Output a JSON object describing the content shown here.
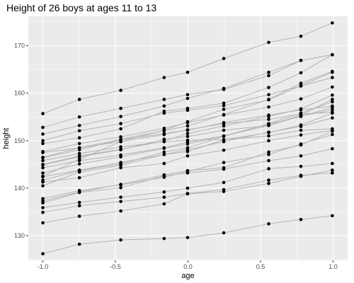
{
  "chart_data": {
    "type": "line",
    "title": "Height of 26 boys at ages 11 to 13",
    "xlabel": "age",
    "ylabel": "height",
    "xlim": [
      -1.1,
      1.1
    ],
    "ylim": [
      124.8,
      176.2
    ],
    "x_ticks": [
      -1.0,
      -0.5,
      0.0,
      0.5,
      1.0
    ],
    "x_tick_labels": [
      "-1.0",
      "-0.5",
      "0.0",
      "0.5",
      "1.0"
    ],
    "y_ticks": [
      130,
      140,
      150,
      160,
      170
    ],
    "y_tick_labels": [
      "130",
      "140",
      "150",
      "160",
      "170"
    ],
    "grid": true,
    "legend": "none",
    "colors": {
      "panel": "#ebebeb",
      "grid_major": "#ffffff",
      "point": "#000000",
      "line": "#b3b3b3",
      "tick_text": "#4d4d4d"
    },
    "series": [
      {
        "x": [
          -1.0,
          -0.7479,
          -0.463,
          -0.1643,
          -0.0027,
          0.2466,
          0.5562,
          0.7781,
          0.9945
        ],
        "y": [
          140.5,
          143.4,
          144.8,
          147.1,
          147.7,
          150.2,
          151.7,
          153.3,
          155.8
        ]
      },
      {
        "x": [
          -1.0,
          -0.7479,
          -0.463,
          -0.1643,
          -0.0027,
          0.2466,
          0.5562,
          0.7781,
          0.9945
        ],
        "y": [
          136.9,
          139.1,
          140.1,
          142.6,
          143.2,
          144.0,
          145.8,
          146.8,
          148.3
        ]
      },
      {
        "x": [
          -1.0,
          -0.7479,
          -0.463,
          -0.1643,
          -0.0027,
          0.2466,
          0.5562,
          0.7781,
          0.9945
        ],
        "y": [
          150.0,
          152.1,
          153.6,
          155.8,
          156.4,
          157.4,
          159.7,
          161.5,
          163.3
        ]
      },
      {
        "x": [
          -1.0,
          -0.7479,
          -0.463,
          -0.1643,
          -0.0027,
          0.2466,
          0.5562,
          0.7781,
          0.9945
        ],
        "y": [
          155.7,
          158.7,
          160.6,
          163.3,
          164.4,
          167.3,
          170.7,
          172.0,
          174.8
        ]
      },
      {
        "x": [
          -1.0,
          -0.7479,
          -0.463,
          -0.1643,
          -0.0027,
          0.2466,
          0.5562,
          0.7781,
          0.9945
        ],
        "y": [
          145.8,
          147.3,
          148.7,
          149.8,
          150.1,
          150.2,
          151.0,
          152.2,
          152.5
        ]
      },
      {
        "x": [
          -1.0,
          -0.7479,
          -0.463,
          -0.1643,
          -0.0027,
          0.2466,
          0.5562,
          0.7781,
          0.9945
        ],
        "y": [
          142.4,
          143.8,
          145.4,
          147.1,
          148.1,
          149.8,
          151.8,
          153.0,
          154.8
        ]
      },
      {
        "x": [
          -1.0,
          -0.7479,
          -0.463,
          -0.1643,
          -0.0027,
          0.2466,
          0.5562,
          0.7781,
          0.9945
        ],
        "y": [
          141.3,
          142.2,
          144.3,
          145.2,
          146.8,
          148.0,
          150.0,
          151.2,
          152.2
        ]
      },
      {
        "x": [
          -1.0,
          -0.7479,
          -0.463,
          -0.1643,
          -0.0027,
          0.2466,
          0.5562,
          0.7781,
          0.9945
        ],
        "y": [
          141.7,
          143.7,
          145.1,
          147.6,
          148.5,
          150.9,
          153.6,
          155.8,
          158.2
        ]
      },
      {
        "x": [
          -1.0,
          -0.7479,
          -0.463,
          -0.1643,
          -0.0027,
          0.2466,
          0.5562,
          0.7781,
          0.9945
        ],
        "y": [
          132.7,
          134.1,
          135.2,
          136.7,
          138.8,
          139.3,
          141.0,
          142.5,
          143.8
        ]
      },
      {
        "x": [
          -1.0,
          -0.7479,
          -0.463,
          -0.1643,
          -0.0027,
          0.2466,
          0.5562,
          0.7781,
          0.9945
        ],
        "y": [
          126.2,
          128.2,
          129.1,
          129.4,
          129.6,
          130.6,
          132.5,
          133.4,
          134.2
        ]
      },
      {
        "x": [
          -1.0,
          -0.7479,
          -0.463,
          -0.1643,
          -0.0027,
          0.2466,
          0.5562,
          0.7781,
          0.9945
        ],
        "y": [
          142.5,
          146.1,
          149.8,
          152.2,
          154.0,
          156.6,
          158.6,
          161.6,
          164.4
        ]
      },
      {
        "x": [
          -1.0,
          -0.7479,
          -0.463,
          -0.1643,
          -0.0027,
          0.2466,
          0.5562,
          0.7781,
          0.9945
        ],
        "y": [
          149.4,
          150.6,
          152.5,
          156.2,
          156.8,
          157.9,
          161.2,
          164.3,
          168.1
        ]
      },
      {
        "x": [
          -1.0,
          -0.7479,
          -0.463,
          -0.1643,
          -0.0027,
          0.2466,
          0.5562,
          0.7781,
          0.9945
        ],
        "y": [
          135.9,
          137.0,
          138.1,
          139.2,
          140.0,
          141.2,
          144.1,
          144.6,
          145.2
        ]
      },
      {
        "x": [
          -1.0,
          -0.7479,
          -0.463,
          -0.1643,
          -0.0027,
          0.2466,
          0.5562,
          0.7781,
          0.9945
        ],
        "y": [
          147.5,
          148.5,
          149.8,
          151.3,
          152.3,
          153.6,
          154.5,
          155.6,
          156.0
        ]
      },
      {
        "x": [
          -1.0,
          -0.7479,
          -0.463,
          -0.1643,
          -0.0027,
          0.2466,
          0.5562,
          0.7781,
          0.9945
        ],
        "y": [
          143.2,
          145.1,
          146.6,
          148.4,
          149.3,
          151.0,
          153.2,
          155.4,
          158.7
        ]
      },
      {
        "x": [
          -1.0,
          -0.7479,
          -0.463,
          -0.1643,
          -0.0027,
          0.2466,
          0.5562,
          0.7781,
          0.9945
        ],
        "y": [
          147.7,
          149.4,
          150.8,
          152.6,
          153.8,
          155.4,
          157.1,
          158.8,
          161.3
        ]
      },
      {
        "x": [
          -1.0,
          -0.7479,
          -0.463,
          -0.1643,
          -0.0027,
          0.2466,
          0.5562,
          0.7781,
          0.9945
        ],
        "y": [
          151.4,
          153.2,
          155.1,
          157.3,
          158.9,
          161.0,
          164.4,
          166.9,
          168.1
        ]
      },
      {
        "x": [
          -1.0,
          -0.7479,
          -0.463,
          -0.1643,
          -0.0027,
          0.2466,
          0.5562,
          0.7781,
          0.9945
        ],
        "y": [
          144.3,
          145.8,
          147.0,
          148.5,
          149.7,
          151.0,
          153.5,
          155.1,
          157.0
        ]
      },
      {
        "x": [
          -1.0,
          -0.7479,
          -0.463,
          -0.1643,
          -0.0027,
          0.2466,
          0.5562,
          0.7781,
          0.9945
        ],
        "y": [
          137.3,
          139.2,
          140.8,
          142.8,
          143.7,
          144.3,
          147.6,
          149.1,
          152.0
        ]
      },
      {
        "x": [
          -1.0,
          -0.7479,
          -0.463,
          -0.1643,
          -0.0027,
          0.2466,
          0.5562,
          0.7781,
          0.9945
        ],
        "y": [
          145.0,
          146.8,
          148.2,
          149.9,
          151.5,
          153.1,
          155.1,
          156.7,
          159.6
        ]
      },
      {
        "x": [
          -1.0,
          -0.7479,
          -0.463,
          -0.1643,
          -0.0027,
          0.2466,
          0.5562,
          0.7781,
          0.9945
        ],
        "y": [
          134.9,
          136.3,
          137.2,
          138.1,
          138.9,
          139.7,
          141.7,
          142.7,
          143.2
        ]
      },
      {
        "x": [
          -1.0,
          -0.7479,
          -0.463,
          -0.1643,
          -0.0027,
          0.2466,
          0.5562,
          0.7781,
          0.9945
        ],
        "y": [
          146.4,
          148.1,
          150.2,
          151.5,
          152.2,
          153.8,
          155.4,
          156.5,
          157.3
        ]
      },
      {
        "x": [
          -1.0,
          -0.7479,
          -0.463,
          -0.1643,
          -0.0027,
          0.2466,
          0.5562,
          0.7781,
          0.9945
        ],
        "y": [
          144.9,
          146.6,
          148.1,
          150.3,
          150.9,
          152.2,
          153.2,
          155.2,
          156.5
        ]
      },
      {
        "x": [
          -1.0,
          -0.7479,
          -0.463,
          -0.1643,
          -0.0027,
          0.2466,
          0.5562,
          0.7781,
          0.9945
        ],
        "y": [
          146.5,
          148.5,
          150.3,
          152.1,
          153.1,
          155.5,
          158.7,
          162.1,
          164.6
        ]
      },
      {
        "x": [
          -1.0,
          -0.7479,
          -0.463,
          -0.1643,
          -0.0027,
          0.2466,
          0.5562,
          0.7781,
          0.9945
        ],
        "y": [
          152.8,
          155.0,
          156.8,
          158.7,
          159.7,
          160.8,
          163.7,
          166.9,
          168.1
        ]
      },
      {
        "x": [
          -1.0,
          -0.7479,
          -0.463,
          -0.1643,
          -0.0027,
          0.2466,
          0.5562,
          0.7781,
          0.9945
        ],
        "y": [
          137.8,
          139.5,
          140.7,
          142.3,
          143.5,
          145.4,
          147.1,
          149.3,
          151.3
        ]
      }
    ]
  }
}
